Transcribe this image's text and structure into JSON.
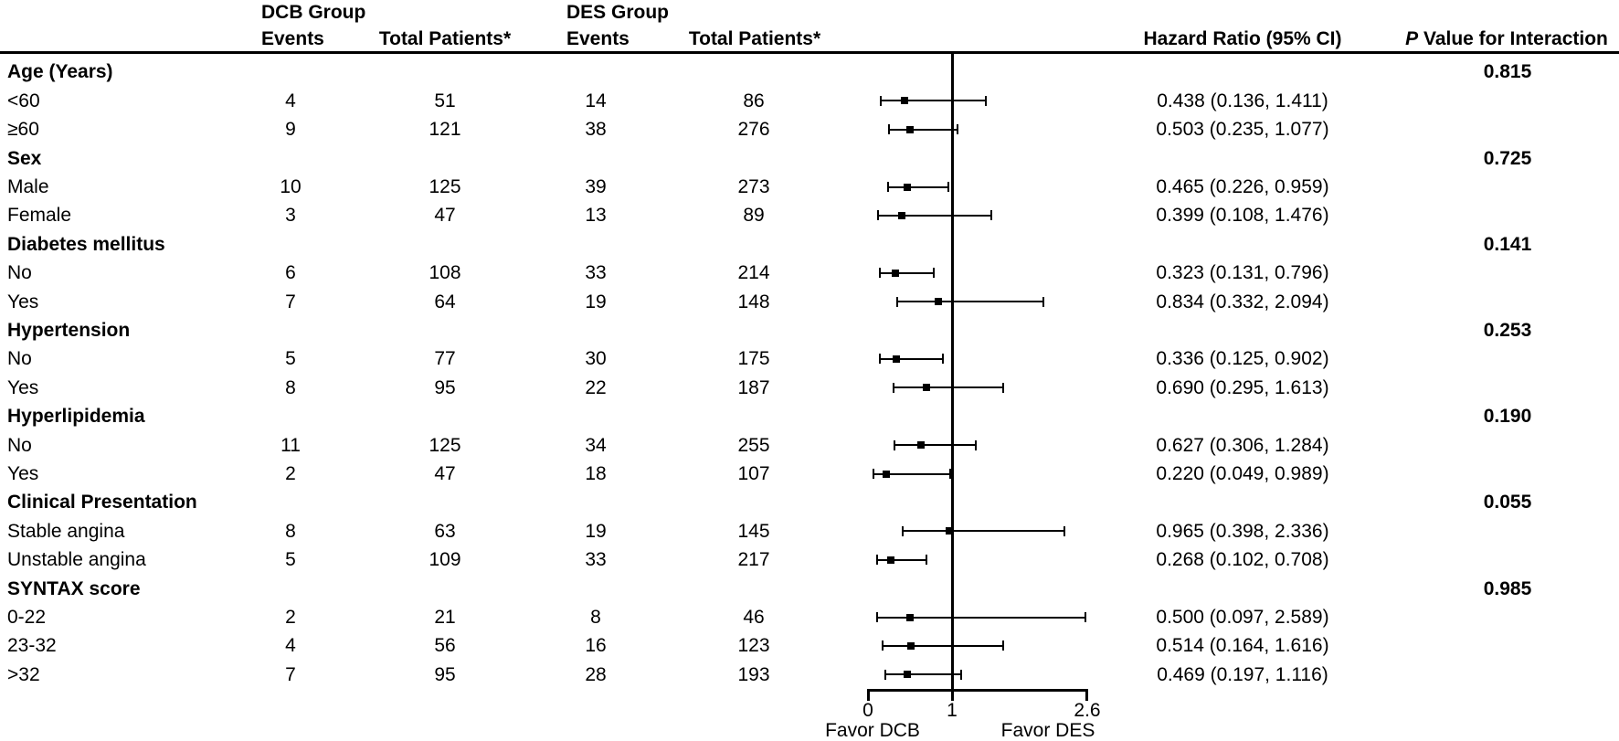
{
  "colors": {
    "text": "#000000",
    "background": "#ffffff",
    "marker": "#000000"
  },
  "header": {
    "dcb_group": "DCB Group",
    "des_group": "DES Group",
    "events": "Events",
    "total_patients": "Total Patients*",
    "hazard_ratio": "Hazard Ratio (95% CI)",
    "p_italic": "P",
    "p_rest": " Value for Interaction"
  },
  "chart_data": {
    "type": "forest",
    "title": "",
    "xlabel": "",
    "xlim": [
      0,
      2.6
    ],
    "x_ticks": [
      "0",
      "1",
      "2.6"
    ],
    "reference_line": 1,
    "favor_left": "Favor DCB",
    "favor_right": "Favor DES",
    "legend_position": "none",
    "grid": false,
    "columns": [
      "Events",
      "Total Patients*",
      "Events",
      "Total Patients*",
      "Hazard Ratio (95% CI)",
      "P Value for Interaction"
    ],
    "rows": [
      {
        "kind": "group",
        "label": "Age (Years)",
        "p_interaction": "0.815"
      },
      {
        "kind": "item",
        "label": "<60",
        "dcb_events": "4",
        "dcb_total": "51",
        "des_events": "14",
        "des_total": "86",
        "hr": 0.438,
        "ci": [
          0.136,
          1.411
        ],
        "hr_ci_text": "0.438 (0.136, 1.411)"
      },
      {
        "kind": "item",
        "label": "≥60",
        "dcb_events": "9",
        "dcb_total": "121",
        "des_events": "38",
        "des_total": "276",
        "hr": 0.503,
        "ci": [
          0.235,
          1.077
        ],
        "hr_ci_text": "0.503 (0.235, 1.077)"
      },
      {
        "kind": "group",
        "label": "Sex",
        "p_interaction": "0.725"
      },
      {
        "kind": "item",
        "label": "Male",
        "dcb_events": "10",
        "dcb_total": "125",
        "des_events": "39",
        "des_total": "273",
        "hr": 0.465,
        "ci": [
          0.226,
          0.959
        ],
        "hr_ci_text": "0.465 (0.226, 0.959)"
      },
      {
        "kind": "item",
        "label": "Female",
        "dcb_events": "3",
        "dcb_total": "47",
        "des_events": "13",
        "des_total": "89",
        "hr": 0.399,
        "ci": [
          0.108,
          1.476
        ],
        "hr_ci_text": "0.399 (0.108, 1.476)"
      },
      {
        "kind": "group",
        "label": "Diabetes mellitus",
        "p_interaction": "0.141"
      },
      {
        "kind": "item",
        "label": "No",
        "dcb_events": "6",
        "dcb_total": "108",
        "des_events": "33",
        "des_total": "214",
        "hr": 0.323,
        "ci": [
          0.131,
          0.796
        ],
        "hr_ci_text": "0.323 (0.131, 0.796)"
      },
      {
        "kind": "item",
        "label": "Yes",
        "dcb_events": "7",
        "dcb_total": "64",
        "des_events": "19",
        "des_total": "148",
        "hr": 0.834,
        "ci": [
          0.332,
          2.094
        ],
        "hr_ci_text": "0.834 (0.332, 2.094)"
      },
      {
        "kind": "group",
        "label": "Hypertension",
        "p_interaction": "0.253"
      },
      {
        "kind": "item",
        "label": "No",
        "dcb_events": "5",
        "dcb_total": "77",
        "des_events": "30",
        "des_total": "175",
        "hr": 0.336,
        "ci": [
          0.125,
          0.902
        ],
        "hr_ci_text": "0.336 (0.125, 0.902)"
      },
      {
        "kind": "item",
        "label": "Yes",
        "dcb_events": "8",
        "dcb_total": "95",
        "des_events": "22",
        "des_total": "187",
        "hr": 0.69,
        "ci": [
          0.295,
          1.613
        ],
        "hr_ci_text": "0.690 (0.295, 1.613)"
      },
      {
        "kind": "group",
        "label": "Hyperlipidemia",
        "p_interaction": "0.190"
      },
      {
        "kind": "item",
        "label": "No",
        "dcb_events": "11",
        "dcb_total": "125",
        "des_events": "34",
        "des_total": "255",
        "hr": 0.627,
        "ci": [
          0.306,
          1.284
        ],
        "hr_ci_text": "0.627 (0.306, 1.284)"
      },
      {
        "kind": "item",
        "label": "Yes",
        "dcb_events": "2",
        "dcb_total": "47",
        "des_events": "18",
        "des_total": "107",
        "hr": 0.22,
        "ci": [
          0.049,
          0.989
        ],
        "hr_ci_text": "0.220 (0.049, 0.989)"
      },
      {
        "kind": "group",
        "label": "Clinical Presentation",
        "p_interaction": "0.055"
      },
      {
        "kind": "item",
        "label": "Stable angina",
        "dcb_events": "8",
        "dcb_total": "63",
        "des_events": "19",
        "des_total": "145",
        "hr": 0.965,
        "ci": [
          0.398,
          2.336
        ],
        "hr_ci_text": "0.965 (0.398, 2.336)"
      },
      {
        "kind": "item",
        "label": "Unstable angina",
        "dcb_events": "5",
        "dcb_total": "109",
        "des_events": "33",
        "des_total": "217",
        "hr": 0.268,
        "ci": [
          0.102,
          0.708
        ],
        "hr_ci_text": "0.268 (0.102, 0.708)"
      },
      {
        "kind": "group",
        "label": "SYNTAX score",
        "p_interaction": "0.985"
      },
      {
        "kind": "item",
        "label": "0-22",
        "dcb_events": "2",
        "dcb_total": "21",
        "des_events": "8",
        "des_total": "46",
        "hr": 0.5,
        "ci": [
          0.097,
          2.589
        ],
        "hr_ci_text": "0.500 (0.097, 2.589)"
      },
      {
        "kind": "item",
        "label": "23-32",
        "dcb_events": "4",
        "dcb_total": "56",
        "des_events": "16",
        "des_total": "123",
        "hr": 0.514,
        "ci": [
          0.164,
          1.616
        ],
        "hr_ci_text": "0.514 (0.164, 1.616)"
      },
      {
        "kind": "item",
        "label": ">32",
        "dcb_events": "7",
        "dcb_total": "95",
        "des_events": "28",
        "des_total": "193",
        "hr": 0.469,
        "ci": [
          0.197,
          1.116
        ],
        "hr_ci_text": "0.469 (0.197, 1.116)"
      }
    ]
  }
}
